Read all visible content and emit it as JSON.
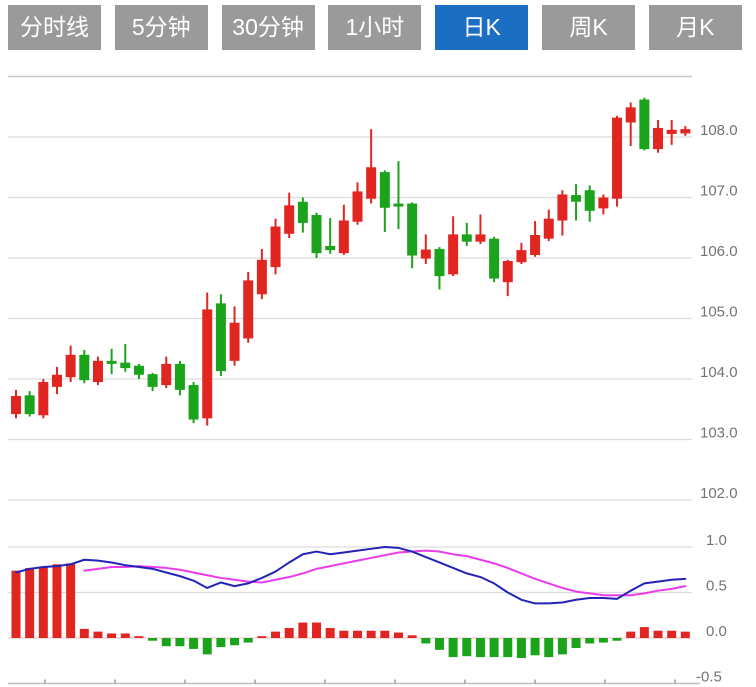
{
  "tabs": [
    {
      "label": "分时线",
      "active": false
    },
    {
      "label": "5分钟",
      "active": false
    },
    {
      "label": "30分钟",
      "active": false
    },
    {
      "label": "1小时",
      "active": false
    },
    {
      "label": "日K",
      "active": true
    },
    {
      "label": "周K",
      "active": false
    },
    {
      "label": "月K",
      "active": false
    }
  ],
  "colors": {
    "up": "#e12622",
    "down": "#1ca31c",
    "dif_line": "#2323b8",
    "dea_line": "#ea3cea",
    "grid": "#dcdcdc",
    "grid_top": "#c8c8c8",
    "zero_line": "#e7c1c1",
    "x_axis": "#c0c0c0",
    "x_tick": "#9a9a9a",
    "axis_label": "#737373",
    "tab_bg": "#9a9a9a",
    "tab_active_bg": "#1b6ec2",
    "tab_text": "#ffffff",
    "background": "#ffffff"
  },
  "chart_data": {
    "type": "candlestick_with_macd",
    "legend_position": "none",
    "grid": true,
    "main_panel": {
      "kind": "candlestick",
      "ylim": [
        101.6,
        109.0
      ],
      "y_ticks": [
        108.0,
        107.0,
        106.0,
        105.0,
        104.0,
        103.0,
        102.0
      ],
      "y_tick_labels": [
        "108.0",
        "107.0",
        "106.0",
        "105.0",
        "104.0",
        "103.0",
        "102.0"
      ],
      "unlabeled_top_grid_value": 109.0,
      "candles_ohlc": [
        [
          103.42,
          103.82,
          103.35,
          103.72
        ],
        [
          103.73,
          103.8,
          103.38,
          103.42
        ],
        [
          103.4,
          104.0,
          103.35,
          103.95
        ],
        [
          103.87,
          104.2,
          103.75,
          104.07
        ],
        [
          104.03,
          104.55,
          103.95,
          104.4
        ],
        [
          104.4,
          104.48,
          103.93,
          103.98
        ],
        [
          103.95,
          104.37,
          103.9,
          104.3
        ],
        [
          104.3,
          104.5,
          104.08,
          104.25
        ],
        [
          104.27,
          104.58,
          104.12,
          104.18
        ],
        [
          104.22,
          104.25,
          104.0,
          104.07
        ],
        [
          104.08,
          104.1,
          103.8,
          103.87
        ],
        [
          103.9,
          104.37,
          103.85,
          104.25
        ],
        [
          104.25,
          104.3,
          103.73,
          103.82
        ],
        [
          103.9,
          103.95,
          103.27,
          103.33
        ],
        [
          103.35,
          105.43,
          103.23,
          105.15
        ],
        [
          105.25,
          105.4,
          104.05,
          104.13
        ],
        [
          104.3,
          105.2,
          104.22,
          104.93
        ],
        [
          104.67,
          105.77,
          104.6,
          105.63
        ],
        [
          105.4,
          106.15,
          105.32,
          105.97
        ],
        [
          105.85,
          106.65,
          105.73,
          106.52
        ],
        [
          106.4,
          107.08,
          106.33,
          106.87
        ],
        [
          106.93,
          107.0,
          106.42,
          106.58
        ],
        [
          106.71,
          106.75,
          106.0,
          106.08
        ],
        [
          106.2,
          106.66,
          106.07,
          106.13
        ],
        [
          106.08,
          106.88,
          106.05,
          106.62
        ],
        [
          106.6,
          107.25,
          106.55,
          107.1
        ],
        [
          106.98,
          108.13,
          106.9,
          107.5
        ],
        [
          107.42,
          107.45,
          106.43,
          106.83
        ],
        [
          106.9,
          107.6,
          106.48,
          106.85
        ],
        [
          106.9,
          106.92,
          105.83,
          106.04
        ],
        [
          105.99,
          106.39,
          105.9,
          106.14
        ],
        [
          106.15,
          106.18,
          105.48,
          105.7
        ],
        [
          105.73,
          106.69,
          105.7,
          106.39
        ],
        [
          106.39,
          106.58,
          106.2,
          106.27
        ],
        [
          106.27,
          106.72,
          106.23,
          106.39
        ],
        [
          106.32,
          106.35,
          105.6,
          105.66
        ],
        [
          105.6,
          105.97,
          105.37,
          105.95
        ],
        [
          105.93,
          106.25,
          105.9,
          106.13
        ],
        [
          106.05,
          106.61,
          106.02,
          106.38
        ],
        [
          106.32,
          106.8,
          106.28,
          106.65
        ],
        [
          106.62,
          107.12,
          106.37,
          107.05
        ],
        [
          107.04,
          107.22,
          106.62,
          106.93
        ],
        [
          107.12,
          107.2,
          106.6,
          106.78
        ],
        [
          106.82,
          107.05,
          106.72,
          107.0
        ],
        [
          106.98,
          108.35,
          106.85,
          108.32
        ],
        [
          108.24,
          108.57,
          107.85,
          108.49
        ],
        [
          108.62,
          108.65,
          107.78,
          107.8
        ],
        [
          107.8,
          108.28,
          107.74,
          108.15
        ],
        [
          108.05,
          108.28,
          107.87,
          108.12
        ],
        [
          108.06,
          108.18,
          108.02,
          108.13
        ]
      ]
    },
    "sub_panel": {
      "kind": "macd",
      "indicator": "MACD",
      "ylim": [
        -0.5,
        1.0
      ],
      "y_ticks": [
        1.0,
        0.5,
        0.0,
        -0.5
      ],
      "y_tick_labels": [
        "1.0",
        "0.5",
        "0.0",
        "-0.5"
      ],
      "histogram": [
        0.74,
        0.77,
        0.78,
        0.81,
        0.82,
        0.1,
        0.07,
        0.05,
        0.05,
        0.02,
        -0.03,
        -0.09,
        -0.09,
        -0.12,
        -0.18,
        -0.1,
        -0.08,
        -0.05,
        0.02,
        0.07,
        0.11,
        0.17,
        0.17,
        0.11,
        0.08,
        0.08,
        0.08,
        0.08,
        0.06,
        0.03,
        -0.06,
        -0.13,
        -0.21,
        -0.2,
        -0.21,
        -0.21,
        -0.21,
        -0.22,
        -0.19,
        -0.21,
        -0.18,
        -0.11,
        -0.06,
        -0.05,
        -0.03,
        0.07,
        0.12,
        0.08,
        0.08,
        0.07
      ],
      "dif": [
        0.72,
        0.76,
        0.78,
        0.79,
        0.81,
        0.86,
        0.85,
        0.83,
        0.8,
        0.78,
        0.76,
        0.72,
        0.68,
        0.63,
        0.55,
        0.61,
        0.57,
        0.6,
        0.66,
        0.73,
        0.83,
        0.92,
        0.95,
        0.92,
        0.94,
        0.96,
        0.98,
        1.0,
        0.99,
        0.95,
        0.89,
        0.83,
        0.77,
        0.71,
        0.67,
        0.6,
        0.5,
        0.42,
        0.38,
        0.38,
        0.39,
        0.42,
        0.44,
        0.44,
        0.43,
        0.52,
        0.6,
        0.62,
        0.64,
        0.65
      ],
      "dea": [
        null,
        null,
        null,
        null,
        null,
        0.74,
        0.76,
        0.78,
        0.78,
        0.79,
        0.78,
        0.77,
        0.75,
        0.72,
        0.69,
        0.66,
        0.64,
        0.62,
        0.61,
        0.64,
        0.67,
        0.71,
        0.76,
        0.79,
        0.82,
        0.85,
        0.88,
        0.91,
        0.94,
        0.95,
        0.96,
        0.95,
        0.92,
        0.9,
        0.86,
        0.82,
        0.77,
        0.71,
        0.65,
        0.6,
        0.55,
        0.51,
        0.49,
        0.47,
        0.47,
        0.47,
        0.49,
        0.52,
        0.54,
        0.57
      ]
    }
  }
}
